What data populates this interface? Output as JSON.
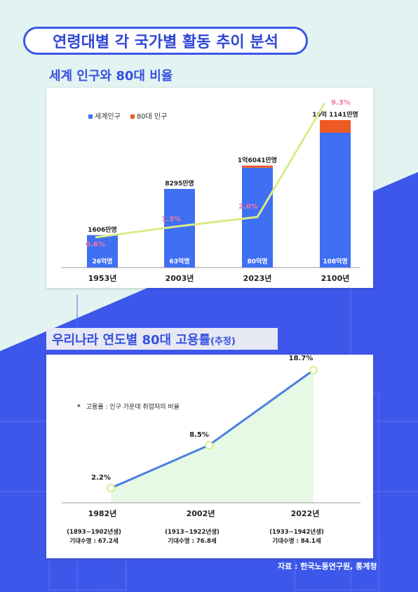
{
  "page": {
    "title": "연령대별 각 국가별 활동 추이 분석",
    "source": "자료 : 한국노동연구원, 통계청"
  },
  "colors": {
    "primary_blue": "#3a57e8",
    "bar_blue": "#3f6ff2",
    "bar_orange": "#ef5a24",
    "line_yellow": "#dbeb8a",
    "pct_pink": "#f07aa0",
    "area_green": "#e6f9e4",
    "line_blue": "#4a7fe2"
  },
  "chart_data": [
    {
      "type": "bar",
      "title": "세계 인구와 80대 비율",
      "categories": [
        "1953년",
        "2003년",
        "2023년",
        "2100년"
      ],
      "series": [
        {
          "name": "세계인구",
          "values": [
            26,
            63,
            80,
            108
          ],
          "value_labels": [
            "26억명",
            "63억명",
            "80억명",
            "108억명"
          ]
        },
        {
          "name": "80대 인구",
          "values": [
            0.1606,
            0.8295,
            1.6041,
            10.1141
          ],
          "value_labels": [
            "1606만명",
            "8295만명",
            "1억6041만명",
            "10억 1141만명"
          ]
        }
      ],
      "line": {
        "name": "80대 비율",
        "values": [
          0.6,
          1.3,
          2.0,
          9.3
        ],
        "labels": [
          "0.6%",
          "1.3%",
          "2.0%",
          "9.3%"
        ]
      },
      "legend": "top-left"
    },
    {
      "type": "line",
      "title": "우리나라 연도별 80대 고용률",
      "title_suffix": "(추정)",
      "note_star": "*",
      "note": "고용률 : 인구 가운데 취업자의 비율",
      "categories": [
        "1982년",
        "2002년",
        "2022년"
      ],
      "values": [
        2.2,
        8.5,
        18.7
      ],
      "value_labels": [
        "2.2%",
        "8.5%",
        "18.7%"
      ],
      "cohorts": [
        "(1893~1902년생)",
        "(1913~1922년생)",
        "(1933~1942년생)"
      ],
      "life_expectancy": [
        "기대수명 : 67.2세",
        "기대수명 : 76.8세",
        "기대수명 : 84.1세"
      ]
    }
  ]
}
